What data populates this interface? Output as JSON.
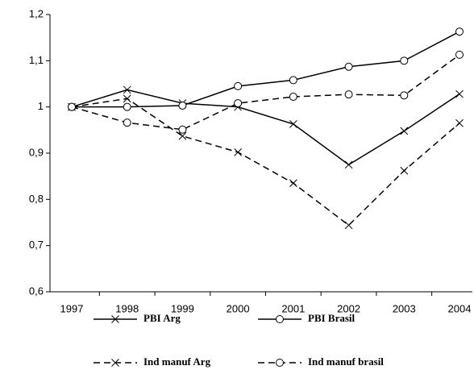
{
  "chart_data": {
    "type": "line",
    "categories": [
      "1997",
      "1998",
      "1999",
      "2000",
      "2001",
      "2002",
      "2003",
      "2004"
    ],
    "ylim": [
      0.6,
      1.2
    ],
    "yticks": [
      {
        "value": 0.6,
        "label": "0,6"
      },
      {
        "value": 0.7,
        "label": "0,7"
      },
      {
        "value": 0.8,
        "label": "0,8"
      },
      {
        "value": 0.9,
        "label": "0,9"
      },
      1,
      {
        "value": 1.1,
        "label": "1,1"
      },
      {
        "value": 1.2,
        "label": "1,2"
      }
    ],
    "grid": false,
    "series": [
      {
        "name": "PBI Arg",
        "color": "#000000",
        "style": "solid",
        "marker": "x",
        "values": [
          1.0,
          1.037,
          1.008,
          1.0,
          0.963,
          0.875,
          0.948,
          1.028
        ]
      },
      {
        "name": "PBI Brasil",
        "color": "#000000",
        "style": "solid",
        "marker": "o",
        "values": [
          1.0,
          1.0,
          1.003,
          1.045,
          1.058,
          1.087,
          1.1,
          1.163
        ]
      },
      {
        "name": "Ind manuf Arg",
        "color": "#000000",
        "style": "dashed",
        "marker": "x",
        "values": [
          1.0,
          1.018,
          0.937,
          0.902,
          0.835,
          0.744,
          0.862,
          0.965
        ]
      },
      {
        "name": "Ind manuf brasil",
        "color": "#000000",
        "style": "dashed",
        "marker": "o",
        "values": [
          1.0,
          0.966,
          0.951,
          1.008,
          1.022,
          1.027,
          1.025,
          1.113
        ]
      }
    ]
  }
}
